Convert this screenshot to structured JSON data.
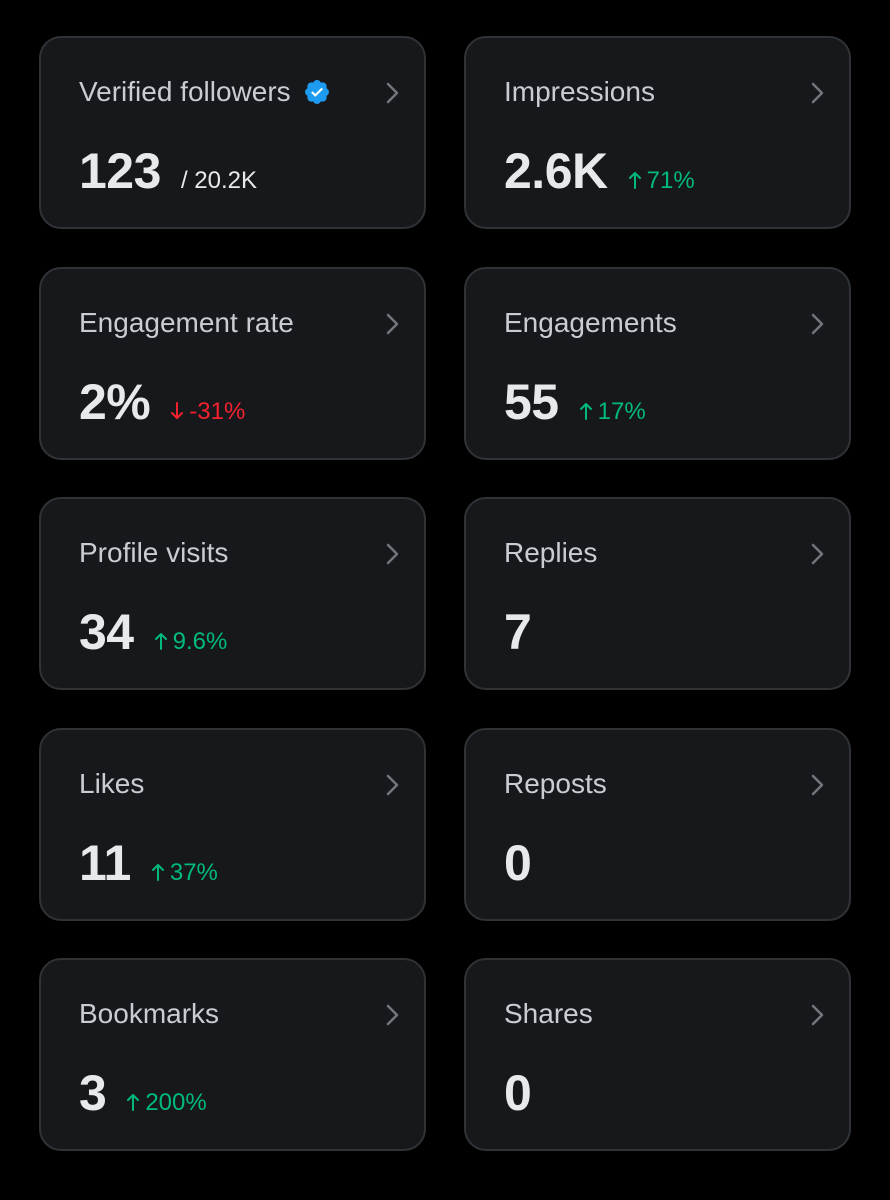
{
  "cards": [
    {
      "title": "Verified followers",
      "value": "123",
      "sub": "/ 20.2K",
      "verified": true
    },
    {
      "title": "Impressions",
      "value": "2.6K",
      "delta": "71%",
      "direction": "up"
    },
    {
      "title": "Engagement rate",
      "value": "2%",
      "delta": "-31%",
      "direction": "down"
    },
    {
      "title": "Engagements",
      "value": "55",
      "delta": "17%",
      "direction": "up"
    },
    {
      "title": "Profile visits",
      "value": "34",
      "delta": "9.6%",
      "direction": "up"
    },
    {
      "title": "Replies",
      "value": "7"
    },
    {
      "title": "Likes",
      "value": "11",
      "delta": "37%",
      "direction": "up"
    },
    {
      "title": "Reposts",
      "value": "0"
    },
    {
      "title": "Bookmarks",
      "value": "3",
      "delta": "200%",
      "direction": "up"
    },
    {
      "title": "Shares",
      "value": "0"
    }
  ],
  "colors": {
    "background": "#000000",
    "card": "#16181c",
    "border": "#2f3336",
    "up": "#00ba7c",
    "down": "#f4212e",
    "verified": "#1d9bf0"
  },
  "icons": {
    "chevron": "chevron-right-icon",
    "verified": "verified-badge-icon",
    "up": "arrow-up-icon",
    "down": "arrow-down-icon"
  }
}
